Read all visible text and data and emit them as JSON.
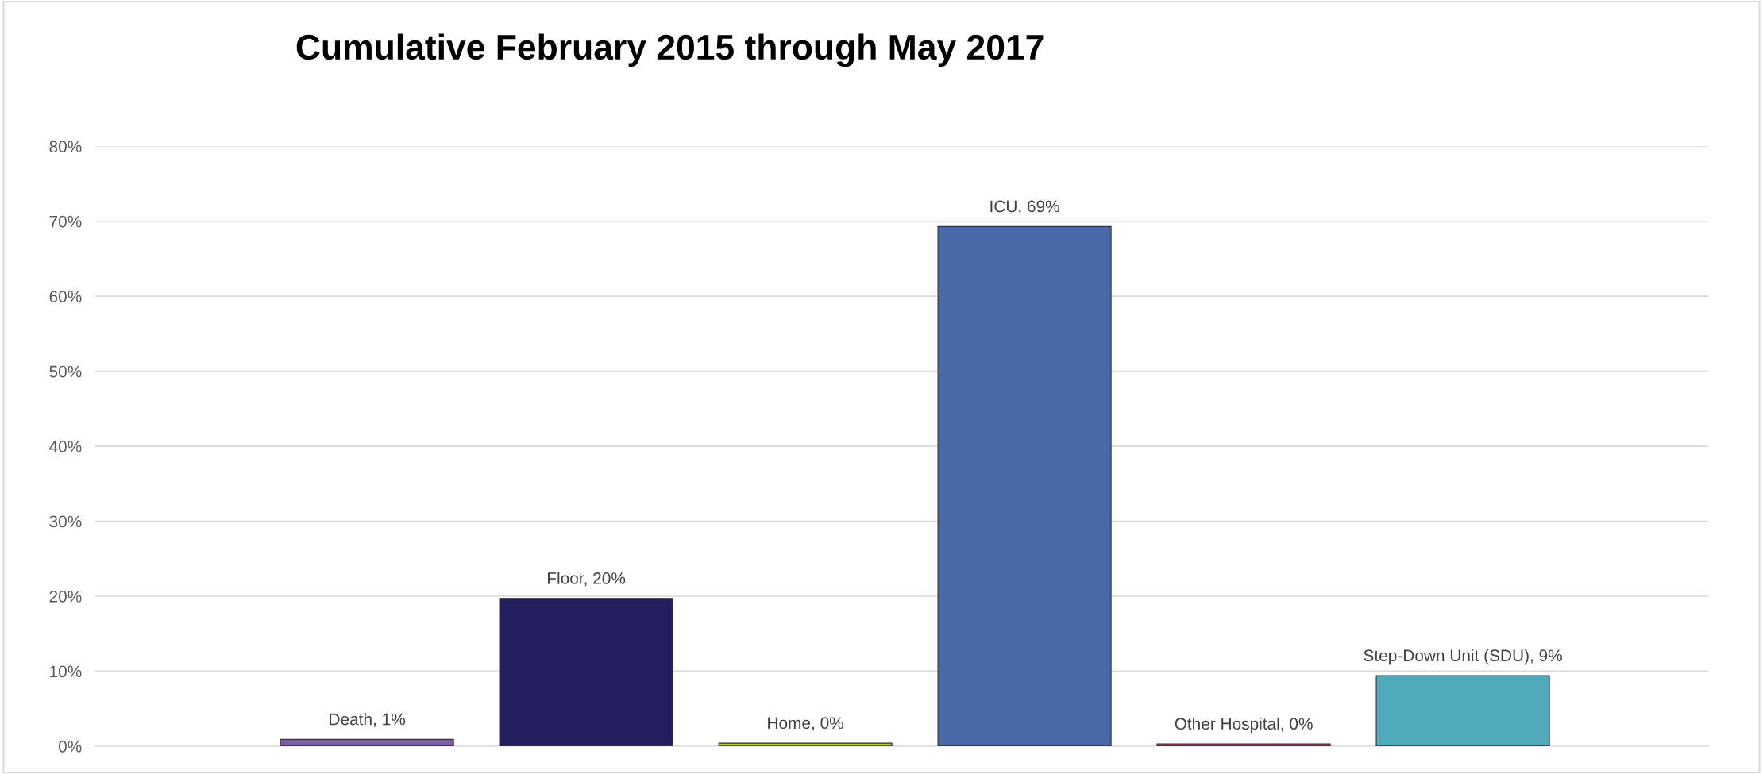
{
  "chart_data": {
    "type": "bar",
    "title": "Cumulative February 2015 through May 2017",
    "categories": [
      null,
      null,
      null,
      null,
      null,
      null
    ],
    "values": [
      0.9,
      19.7,
      0.4,
      69.3,
      0.3,
      9.4
    ],
    "colors": [
      "#7a5ea8",
      "#23205f",
      "#b5c62f",
      "#4a69a8",
      "#9e4a77",
      "#4faabd"
    ],
    "value_labels": [
      "Death, 1%",
      "Floor, 20%",
      "Home, 0%",
      "ICU, 69%",
      "Other Hospital, 0%",
      "Step-Down Unit (SDU), 9%"
    ],
    "ylim": [
      0,
      80
    ],
    "yticks": [
      {
        "value": 0,
        "label": "0%"
      },
      {
        "value": 10,
        "label": "10%"
      },
      {
        "value": 20,
        "label": "20%"
      },
      {
        "value": 30,
        "label": "30%"
      },
      {
        "value": 40,
        "label": "40%"
      },
      {
        "value": 50,
        "label": "50%"
      },
      {
        "value": 60,
        "label": "60%"
      },
      {
        "value": 70,
        "label": "70%"
      },
      {
        "value": 80,
        "label": "80%"
      }
    ],
    "grid": "y",
    "tick_labels": "y",
    "legend": false
  }
}
